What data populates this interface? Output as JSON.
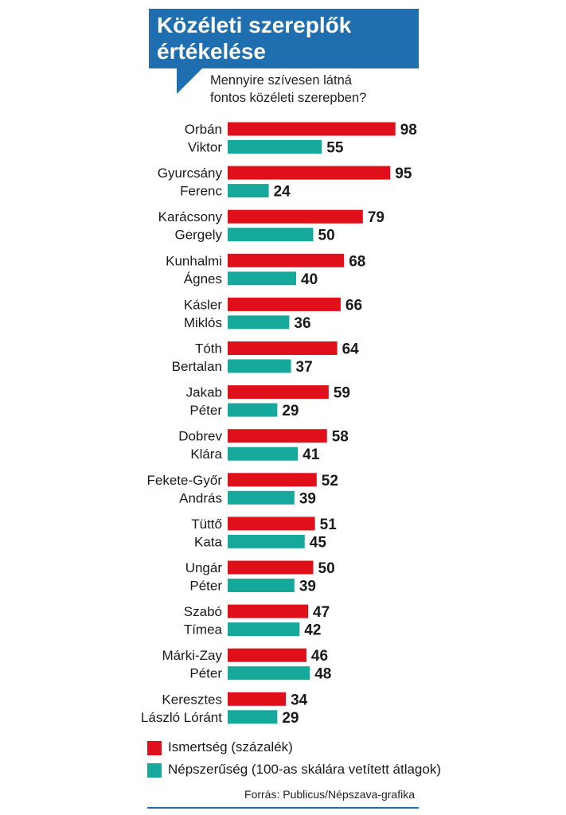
{
  "title": {
    "line1": "Közéleti szereplők",
    "line2": "értékelése"
  },
  "subtitle": {
    "line1": "Mennyire szívesen látná",
    "line2": "fontos közéleti szerepben?"
  },
  "colors": {
    "title_bg": "#1f6fb0",
    "ismertseg": "#e0101a",
    "nepszeruseg": "#17a89c"
  },
  "legend": {
    "ismertseg": "Ismertség (százalék)",
    "nepszeruseg": "Népszerűség (100-as skálára vetített átlagok)"
  },
  "source": "Forrás: Publicus/Népszava-grafika",
  "chart_data": {
    "type": "bar",
    "orientation": "horizontal",
    "categories": [
      [
        "Orbán",
        "Viktor"
      ],
      [
        "Gyurcsány",
        "Ferenc"
      ],
      [
        "Karácsony",
        "Gergely"
      ],
      [
        "Kunhalmi",
        "Ágnes"
      ],
      [
        "Kásler",
        "Miklós"
      ],
      [
        "Tóth",
        "Bertalan"
      ],
      [
        "Jakab",
        "Péter"
      ],
      [
        "Dobrev",
        "Klára"
      ],
      [
        "Fekete-Győr",
        "András"
      ],
      [
        "Tüttő",
        "Kata"
      ],
      [
        "Ungár",
        "Péter"
      ],
      [
        "Szabó",
        "Tímea"
      ],
      [
        "Márki-Zay",
        "Péter"
      ],
      [
        "Keresztes",
        "László Lóránt"
      ]
    ],
    "series": [
      {
        "name": "Ismertség (százalék)",
        "color": "#e0101a",
        "values": [
          98,
          95,
          79,
          68,
          66,
          64,
          59,
          58,
          52,
          51,
          50,
          47,
          46,
          34
        ]
      },
      {
        "name": "Népszerűség (100-as skálára vetített átlagok)",
        "color": "#17a89c",
        "values": [
          55,
          24,
          50,
          40,
          36,
          37,
          29,
          41,
          39,
          45,
          39,
          42,
          48,
          29
        ]
      }
    ],
    "xlim": [
      0,
      100
    ],
    "grid": false,
    "legend_position": "bottom"
  }
}
